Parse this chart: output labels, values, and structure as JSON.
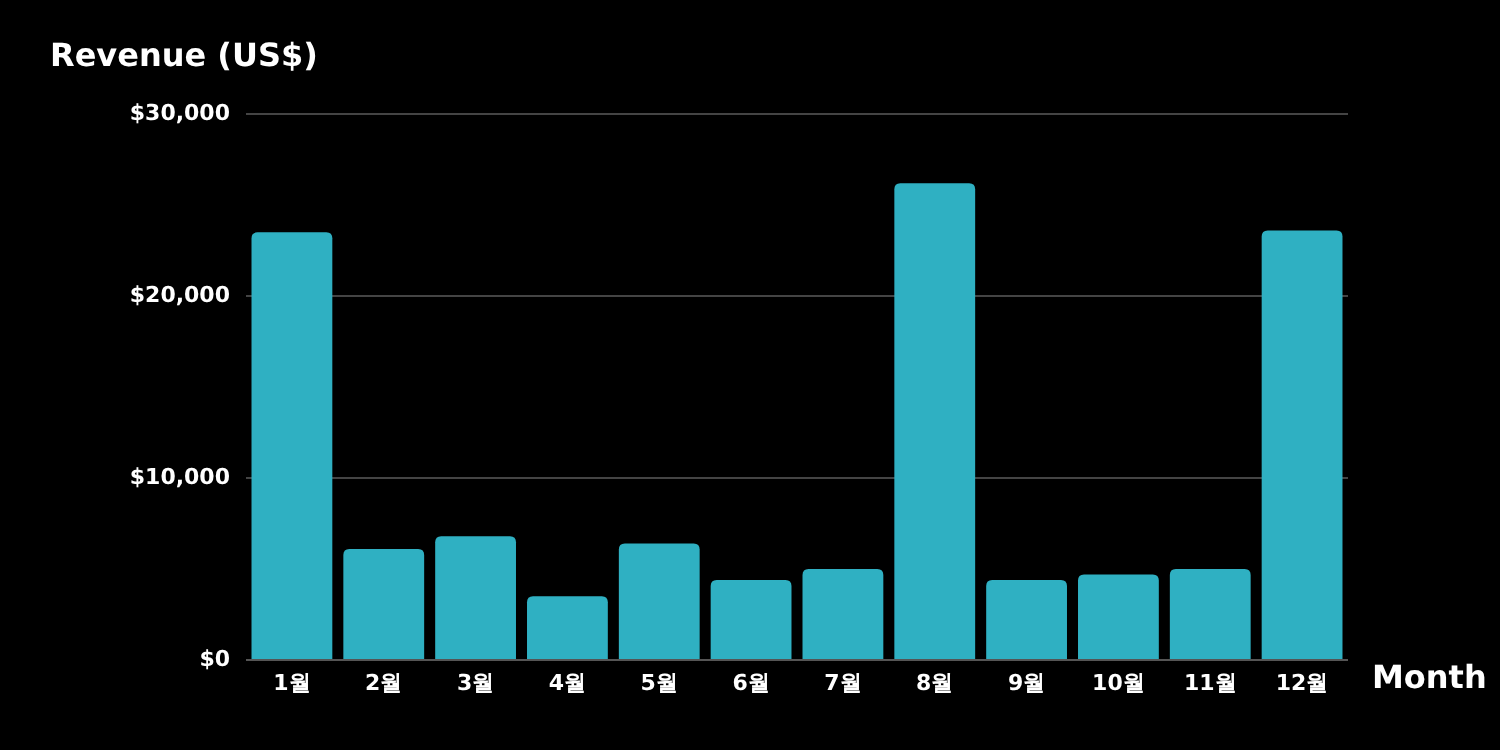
{
  "chart_data": {
    "type": "bar",
    "title": "Revenue (US$)",
    "xlabel": "Month",
    "categories": [
      "1월",
      "2월",
      "3월",
      "4월",
      "5월",
      "6월",
      "7월",
      "8월",
      "9월",
      "10월",
      "11월",
      "12월"
    ],
    "values": [
      23500,
      6100,
      6800,
      3500,
      6400,
      4400,
      5000,
      26200,
      4400,
      4700,
      5000,
      23600
    ],
    "color": "#2fb0c2",
    "ylim": [
      0,
      30000
    ],
    "yticks": [
      {
        "value": 0,
        "label": "$0"
      },
      {
        "value": 10000,
        "label": "$10,000"
      },
      {
        "value": 20000,
        "label": "$20,000"
      },
      {
        "value": 30000,
        "label": "$30,000"
      }
    ],
    "grid": "y"
  }
}
